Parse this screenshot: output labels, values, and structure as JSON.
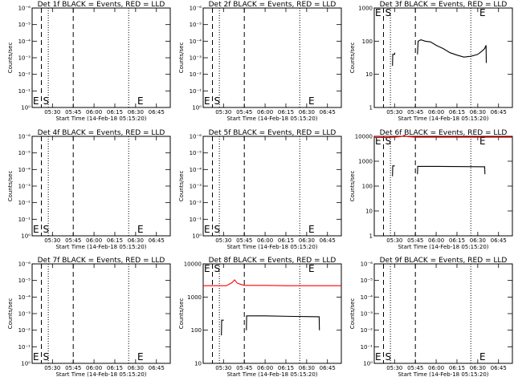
{
  "figure": {
    "x_time_start": "05:15:20",
    "x_time_end": "06:55:00",
    "x_tick_labels": [
      "05:30",
      "05:45",
      "06:00",
      "06:15",
      "06:30",
      "06:45"
    ],
    "start_marker_time": "05:22:00",
    "end_marker_time": "06:33:00",
    "dashed_line_times": [
      "05:22:00",
      "05:45:00"
    ],
    "dotted_line_times": [
      "05:27:00",
      "06:25:00"
    ],
    "colors": {
      "events": "#000000",
      "lld": "#ff0000"
    }
  },
  "chart_data": [
    {
      "type": "line",
      "title": "Det 1f BLACK = Events, RED = LLD",
      "ylabel": "Counts/sec",
      "xlabel": "Start Time (14-Feb-18 05:15:20)",
      "yscale": "log",
      "ylim": [
        1,
        1e-06
      ],
      "y_tick_labels": [
        "10⁻⁶",
        "10⁻⁵",
        "10⁻⁴",
        "10⁻³",
        "10⁻²",
        "10⁻¹",
        "10⁰"
      ],
      "y_tick_values": [
        1e-06,
        1e-05,
        0.0001,
        0.001,
        0.01,
        0.1,
        1
      ],
      "marker_labels": [
        "E",
        "S",
        "E"
      ],
      "series": []
    },
    {
      "type": "line",
      "title": "Det 2f BLACK = Events, RED = LLD",
      "ylabel": "Counts/sec",
      "xlabel": "Start Time (14-Feb-18 05:15:20)",
      "yscale": "log",
      "ylim": [
        1,
        1e-06
      ],
      "y_tick_labels": [
        "10⁻⁶",
        "10⁻⁵",
        "10⁻⁴",
        "10⁻³",
        "10⁻²",
        "10⁻¹",
        "10⁰"
      ],
      "y_tick_values": [
        1e-06,
        1e-05,
        0.0001,
        0.001,
        0.01,
        0.1,
        1
      ],
      "marker_labels": [
        "E",
        "S",
        "E"
      ],
      "series": []
    },
    {
      "type": "line",
      "title": "Det 3f BLACK = Events, RED = LLD",
      "ylabel": "Counts/sec",
      "xlabel": "Start Time (14-Feb-18 05:15:20)",
      "yscale": "log",
      "ylim": [
        1,
        1000
      ],
      "y_tick_labels": [
        "1",
        "10",
        "100",
        "1000"
      ],
      "y_tick_values": [
        1,
        10,
        100,
        1000
      ],
      "marker_labels": [
        "E",
        "S",
        "E"
      ],
      "series": [
        {
          "color": "#000000",
          "segments": [
            {
              "x": [
                "05:28:30",
                "05:28:40",
                "05:30:00",
                "05:30:10"
              ],
              "y": [
                18,
                40,
                40,
                45
              ]
            },
            {
              "x": [
                "05:46:30",
                "05:47:00",
                "05:49:00",
                "05:52:00",
                "05:56:00",
                "06:00:00",
                "06:05:00",
                "06:10:00",
                "06:15:00",
                "06:20:00",
                "06:25:00",
                "06:30:00",
                "06:33:00",
                "06:35:00",
                "06:36:00",
                "06:36:10"
              ],
              "y": [
                40,
                100,
                110,
                100,
                95,
                75,
                60,
                45,
                38,
                33,
                35,
                40,
                50,
                60,
                75,
                22
              ]
            }
          ]
        }
      ]
    },
    {
      "type": "line",
      "title": "Det 4f BLACK = Events, RED = LLD",
      "ylabel": "Counts/sec",
      "xlabel": "Start Time (14-Feb-18 05:15:20)",
      "yscale": "log",
      "ylim": [
        1,
        1e-06
      ],
      "y_tick_labels": [
        "10⁻⁶",
        "10⁻⁵",
        "10⁻⁴",
        "10⁻³",
        "10⁻²",
        "10⁻¹",
        "10⁰"
      ],
      "y_tick_values": [
        1e-06,
        1e-05,
        0.0001,
        0.001,
        0.01,
        0.1,
        1
      ],
      "marker_labels": [
        "E",
        "S",
        "E"
      ],
      "series": []
    },
    {
      "type": "line",
      "title": "Det 5f BLACK = Events, RED = LLD",
      "ylabel": "Counts/sec",
      "xlabel": "Start Time (14-Feb-18 05:15:20)",
      "yscale": "log",
      "ylim": [
        1,
        1e-06
      ],
      "y_tick_labels": [
        "10⁻⁶",
        "10⁻⁵",
        "10⁻⁴",
        "10⁻³",
        "10⁻²",
        "10⁻¹",
        "10⁰"
      ],
      "y_tick_values": [
        1e-06,
        1e-05,
        0.0001,
        0.001,
        0.01,
        0.1,
        1
      ],
      "marker_labels": [
        "E",
        "S",
        "E"
      ],
      "series": []
    },
    {
      "type": "line",
      "title": "Det 6f BLACK = Events, RED = LLD",
      "ylabel": "Counts/sec",
      "xlabel": "Start Time (14-Feb-18 05:15:20)",
      "yscale": "log",
      "ylim": [
        1,
        10000
      ],
      "y_tick_labels": [
        "1",
        "10",
        "100",
        "1000",
        "10000"
      ],
      "y_tick_values": [
        1,
        10,
        100,
        1000,
        10000
      ],
      "marker_labels": [
        "E",
        "S",
        "E"
      ],
      "series": [
        {
          "color": "#ff0000",
          "segments": [
            {
              "x": [
                "05:15:20",
                "05:25:00",
                "05:30:00",
                "05:35:00",
                "05:37:00",
                "05:39:00",
                "05:45:00",
                "06:00:00",
                "06:15:00",
                "06:30:00",
                "06:55:00"
              ],
              "y": [
                9000,
                9000,
                9200,
                9800,
                11000,
                9800,
                9200,
                9200,
                9200,
                9200,
                9200
              ]
            }
          ]
        },
        {
          "color": "#000000",
          "segments": [
            {
              "x": [
                "05:28:30",
                "05:28:40",
                "05:30:00",
                "05:30:10"
              ],
              "y": [
                250,
                650,
                650,
                650
              ]
            },
            {
              "x": [
                "05:46:30",
                "05:46:40",
                "06:00:00",
                "06:20:00",
                "06:35:00",
                "06:35:10"
              ],
              "y": [
                300,
                620,
                620,
                610,
                600,
                300
              ]
            }
          ]
        }
      ]
    },
    {
      "type": "line",
      "title": "Det 7f BLACK = Events, RED = LLD",
      "ylabel": "Counts/sec",
      "xlabel": "Start Time (14-Feb-18 05:15:20)",
      "yscale": "log",
      "ylim": [
        1,
        1e-06
      ],
      "y_tick_labels": [
        "10⁻⁶",
        "10⁻⁵",
        "10⁻⁴",
        "10⁻³",
        "10⁻²",
        "10⁻¹",
        "10⁰"
      ],
      "y_tick_values": [
        1e-06,
        1e-05,
        0.0001,
        0.001,
        0.01,
        0.1,
        1
      ],
      "marker_labels": [
        "E",
        "S",
        "E"
      ],
      "series": []
    },
    {
      "type": "line",
      "title": "Det 8f BLACK = Events, RED = LLD",
      "ylabel": "Counts/sec",
      "xlabel": "Start Time (14-Feb-18 05:15:20)",
      "yscale": "log",
      "ylim": [
        10,
        10000
      ],
      "y_tick_labels": [
        "10",
        "100",
        "1000",
        "10000"
      ],
      "y_tick_values": [
        10,
        100,
        1000,
        10000
      ],
      "marker_labels": [
        "E",
        "S",
        "E"
      ],
      "series": [
        {
          "color": "#ff0000",
          "segments": [
            {
              "x": [
                "05:15:20",
                "05:25:00",
                "05:32:00",
                "05:36:00",
                "05:38:00",
                "05:40:00",
                "05:45:00",
                "06:00:00",
                "06:15:00",
                "06:30:00",
                "06:55:00"
              ],
              "y": [
                2200,
                2200,
                2200,
                2700,
                3300,
                2600,
                2250,
                2250,
                2200,
                2200,
                2200
              ]
            }
          ]
        },
        {
          "color": "#000000",
          "segments": [
            {
              "x": [
                "05:28:30",
                "05:28:40",
                "05:30:00",
                "05:30:10"
              ],
              "y": [
                70,
                200,
                200,
                200
              ]
            },
            {
              "x": [
                "05:46:30",
                "05:46:40",
                "06:00:00",
                "06:20:00",
                "06:39:00",
                "06:39:10"
              ],
              "y": [
                100,
                270,
                270,
                260,
                255,
                100
              ]
            }
          ]
        }
      ]
    },
    {
      "type": "line",
      "title": "Det 9f BLACK = Events, RED = LLD",
      "ylabel": "Counts/sec",
      "xlabel": "Start Time (14-Feb-18 05:15:20)",
      "yscale": "log",
      "ylim": [
        1,
        1e-06
      ],
      "y_tick_labels": [
        "10⁻⁶",
        "10⁻⁵",
        "10⁻⁴",
        "10⁻³",
        "10⁻²",
        "10⁻¹",
        "10⁰"
      ],
      "y_tick_values": [
        1e-06,
        1e-05,
        0.0001,
        0.001,
        0.01,
        0.1,
        1
      ],
      "marker_labels": [
        "E",
        "S",
        "E"
      ],
      "series": []
    }
  ]
}
